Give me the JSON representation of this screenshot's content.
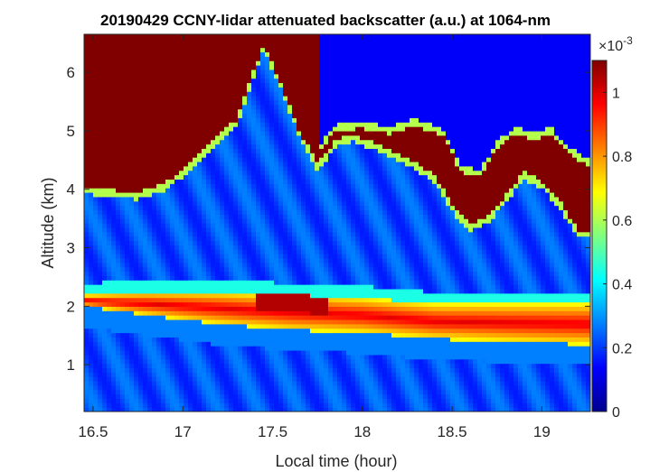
{
  "chart_data": {
    "type": "heatmap",
    "title": "20190429 CCNY-lidar attenuated backscatter (a.u.) at 1064-nm",
    "xlabel": "Local time (hour)",
    "ylabel": "Altitude (km)",
    "xlim": [
      16.45,
      19.27
    ],
    "ylim": [
      0.2,
      6.65
    ],
    "xticks": [
      16.5,
      17,
      17.5,
      18,
      18.5,
      19
    ],
    "xtick_labels": [
      "16.5",
      "17",
      "17.5",
      "18",
      "18.5",
      "19"
    ],
    "yticks": [
      1,
      2,
      3,
      4,
      5,
      6
    ],
    "ytick_labels": [
      "1",
      "2",
      "3",
      "4",
      "5",
      "6"
    ],
    "colorbar": {
      "colormap": "jet",
      "range": [
        0,
        0.0011
      ],
      "ticks": [
        0,
        0.0002,
        0.0004,
        0.0006,
        0.0008,
        0.001
      ],
      "tick_labels": [
        "0",
        "0.2",
        "0.4",
        "0.6",
        "0.8",
        "1"
      ],
      "exponent_label": "×10",
      "exponent_power": "-3"
    },
    "features": {
      "saturated_cloud_base_km": [
        [
          16.46,
          4.05
        ],
        [
          16.6,
          4.0
        ],
        [
          16.75,
          3.95
        ],
        [
          16.9,
          4.1
        ],
        [
          17.0,
          4.35
        ],
        [
          17.1,
          4.65
        ],
        [
          17.2,
          4.95
        ],
        [
          17.3,
          5.2
        ],
        [
          17.45,
          6.5
        ],
        [
          17.55,
          5.8
        ],
        [
          17.65,
          5.0
        ],
        [
          17.75,
          4.45
        ],
        [
          17.8,
          4.6
        ],
        [
          17.85,
          4.85
        ],
        [
          17.95,
          4.95
        ],
        [
          18.1,
          4.75
        ],
        [
          18.25,
          4.55
        ],
        [
          18.4,
          4.25
        ],
        [
          18.5,
          3.75
        ],
        [
          18.6,
          3.4
        ],
        [
          18.7,
          3.55
        ],
        [
          18.8,
          3.9
        ],
        [
          18.9,
          4.3
        ],
        [
          19.0,
          4.15
        ],
        [
          19.1,
          3.8
        ],
        [
          19.2,
          3.3
        ],
        [
          19.27,
          3.3
        ]
      ],
      "saturated_cloud_top_km": [
        [
          17.75,
          4.6
        ],
        [
          17.85,
          5.0
        ],
        [
          18.0,
          5.05
        ],
        [
          18.15,
          4.95
        ],
        [
          18.3,
          5.1
        ],
        [
          18.45,
          4.9
        ],
        [
          18.55,
          4.3
        ],
        [
          18.65,
          4.2
        ],
        [
          18.75,
          4.7
        ],
        [
          18.85,
          4.95
        ],
        [
          18.95,
          4.85
        ],
        [
          19.05,
          4.95
        ],
        [
          19.15,
          4.6
        ],
        [
          19.27,
          4.4
        ]
      ],
      "aerosol_layer_top_km": [
        [
          16.46,
          2.2
        ],
        [
          16.8,
          2.25
        ],
        [
          17.2,
          2.25
        ],
        [
          17.6,
          2.2
        ],
        [
          18.0,
          2.15
        ],
        [
          18.4,
          2.05
        ],
        [
          18.8,
          2.05
        ],
        [
          19.27,
          2.05
        ]
      ],
      "aerosol_layer_bottom_km": [
        [
          16.46,
          2.0
        ],
        [
          16.8,
          1.85
        ],
        [
          17.2,
          1.7
        ],
        [
          17.6,
          1.6
        ],
        [
          18.0,
          1.55
        ],
        [
          18.4,
          1.45
        ],
        [
          18.8,
          1.4
        ],
        [
          19.27,
          1.35
        ]
      ]
    }
  }
}
